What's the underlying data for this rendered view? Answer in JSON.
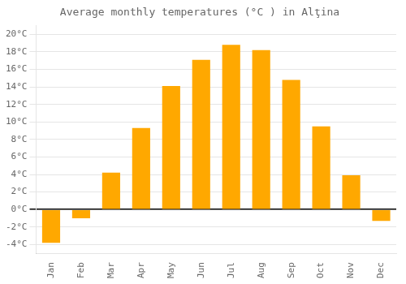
{
  "chart_data": {
    "type": "bar",
    "title": "Average monthly temperatures (°C ) in Alţina",
    "categories": [
      "Jan",
      "Feb",
      "Mar",
      "Apr",
      "May",
      "Jun",
      "Jul",
      "Aug",
      "Sep",
      "Oct",
      "Nov",
      "Dec"
    ],
    "values": [
      -3.8,
      -1.0,
      4.2,
      9.3,
      14.1,
      17.1,
      18.8,
      18.2,
      14.8,
      9.5,
      3.9,
      -1.3
    ],
    "color": "#FFA800",
    "ylim": [
      -5,
      21
    ],
    "yticks": [
      {
        "value": -4,
        "label": "-4°C"
      },
      {
        "value": -2,
        "label": "-2°C"
      },
      {
        "value": 0,
        "label": "0°C"
      },
      {
        "value": 2,
        "label": "2°C"
      },
      {
        "value": 4,
        "label": "4°C"
      },
      {
        "value": 6,
        "label": "6°C"
      },
      {
        "value": 8,
        "label": "8°C"
      },
      {
        "value": 10,
        "label": "10°C"
      },
      {
        "value": 12,
        "label": "12°C"
      },
      {
        "value": 14,
        "label": "14°C"
      },
      {
        "value": 16,
        "label": "16°C"
      },
      {
        "value": 18,
        "label": "18°C"
      },
      {
        "value": 20,
        "label": "20°C"
      }
    ],
    "grid": true
  }
}
